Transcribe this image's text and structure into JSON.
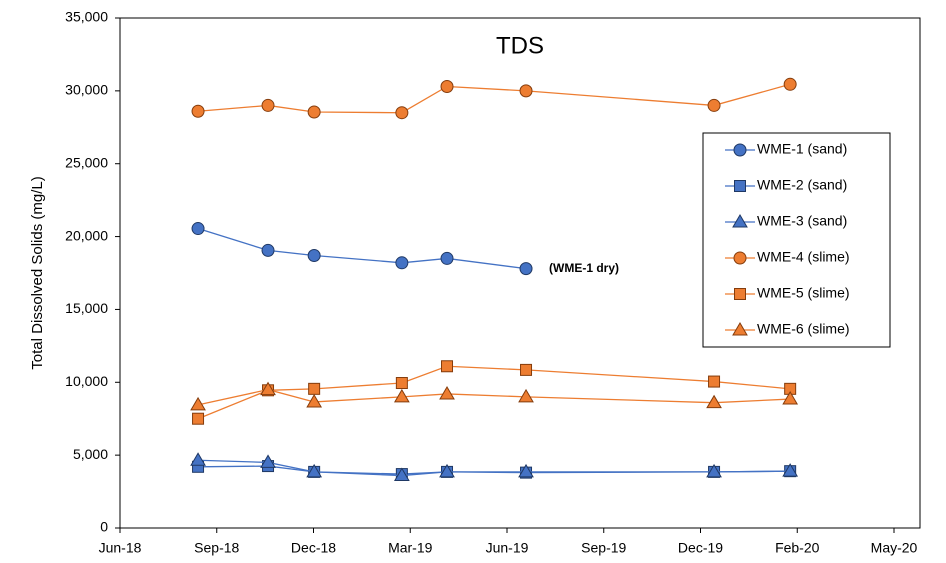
{
  "chart_data": {
    "type": "line",
    "title": "TDS",
    "ylabel": "Total Dissolved Solids  (mg/L)",
    "annotation": "(WME-1 dry)",
    "x": [
      2.42,
      4.59,
      6.02,
      8.74,
      10.14,
      12.59,
      18.42,
      20.78
    ],
    "xlim": [
      0,
      24
    ],
    "xticks": [
      {
        "value": 0,
        "label": "Jun-18"
      },
      {
        "value": 3,
        "label": "Sep-18"
      },
      {
        "value": 6,
        "label": "Dec-18"
      },
      {
        "value": 9,
        "label": "Mar-19"
      },
      {
        "value": 12,
        "label": "Jun-19"
      },
      {
        "value": 15,
        "label": "Sep-19"
      },
      {
        "value": 18,
        "label": "Dec-19"
      },
      {
        "value": 21,
        "label": "Feb-20"
      },
      {
        "value": 24,
        "label": "May-20"
      }
    ],
    "ylim": [
      0,
      35000
    ],
    "yticks": [
      0,
      {
        "value": 5000,
        "label": "5,000"
      },
      {
        "value": 10000,
        "label": "10,000"
      },
      {
        "value": 15000,
        "label": "15,000"
      },
      {
        "value": 20000,
        "label": "20,000"
      },
      {
        "value": 25000,
        "label": "25,000"
      },
      {
        "value": 30000,
        "label": "30,000"
      },
      {
        "value": 35000,
        "label": "35,000"
      }
    ],
    "legend": "right",
    "series": [
      {
        "name": "WME-1 (sand)",
        "color": "#4472c4",
        "marker": "circle",
        "values": [
          20550,
          19050,
          18700,
          18200,
          18500,
          17800,
          null,
          null
        ]
      },
      {
        "name": "WME-2 (sand)",
        "color": "#4472c4",
        "marker": "square",
        "values": [
          4200,
          4250,
          3850,
          3700,
          3850,
          3800,
          3850,
          3900
        ]
      },
      {
        "name": "WME-3 (sand)",
        "color": "#4472c4",
        "marker": "triangle",
        "values": [
          4650,
          4500,
          3850,
          3600,
          3850,
          3850,
          3850,
          3900
        ]
      },
      {
        "name": "WME-4 (slime)",
        "color": "#ed7d31",
        "marker": "circle",
        "values": [
          28600,
          29000,
          28550,
          28500,
          30300,
          30000,
          29000,
          30450
        ]
      },
      {
        "name": "WME-5 (slime)",
        "color": "#ed7d31",
        "marker": "square",
        "values": [
          7500,
          9450,
          9550,
          9950,
          11100,
          10850,
          10050,
          9550
        ]
      },
      {
        "name": "WME-6 (slime)",
        "color": "#ed7d31",
        "marker": "triangle",
        "values": [
          8450,
          9500,
          8650,
          9000,
          9200,
          9000,
          8600,
          8850
        ]
      }
    ]
  }
}
